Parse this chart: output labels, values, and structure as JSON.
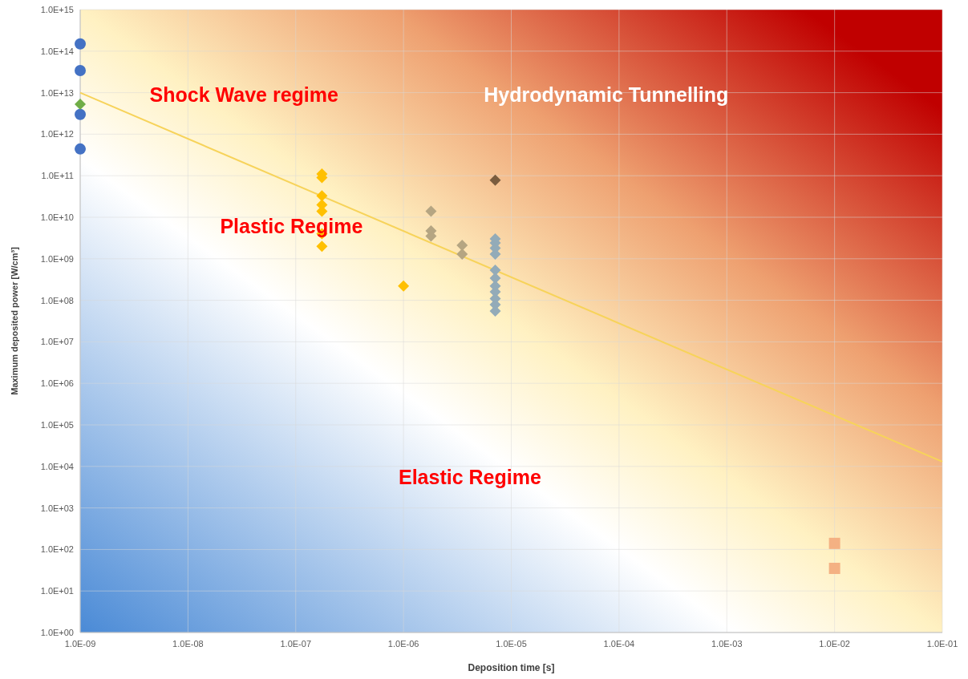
{
  "chart_data": {
    "type": "scatter",
    "xlabel": "Deposition time [s]",
    "ylabel": "Maximum deposited power [W/cm³]",
    "log": "xy",
    "grid": true,
    "xlim": [
      1e-09,
      0.1
    ],
    "ylim": [
      1,
      1000000000000000.0
    ],
    "xticks": [
      {
        "value": 1e-09,
        "label": "1.0E-09"
      },
      {
        "value": 1e-08,
        "label": "1.0E-08"
      },
      {
        "value": 1e-07,
        "label": "1.0E-07"
      },
      {
        "value": 1e-06,
        "label": "1.0E-06"
      },
      {
        "value": 1e-05,
        "label": "1.0E-05"
      },
      {
        "value": 0.0001,
        "label": "1.0E-04"
      },
      {
        "value": 0.001,
        "label": "1.0E-03"
      },
      {
        "value": 0.01,
        "label": "1.0E-02"
      },
      {
        "value": 0.1,
        "label": "1.0E-01"
      }
    ],
    "yticks": [
      {
        "value": 1,
        "label": "1.0E+00"
      },
      {
        "value": 10,
        "label": "1.0E+01"
      },
      {
        "value": 100,
        "label": "1.0E+02"
      },
      {
        "value": 1000.0,
        "label": "1.0E+03"
      },
      {
        "value": 10000.0,
        "label": "1.0E+04"
      },
      {
        "value": 100000.0,
        "label": "1.0E+05"
      },
      {
        "value": 1000000.0,
        "label": "1.0E+06"
      },
      {
        "value": 10000000.0,
        "label": "1.0E+07"
      },
      {
        "value": 100000000.0,
        "label": "1.0E+08"
      },
      {
        "value": 1000000000.0,
        "label": "1.0E+09"
      },
      {
        "value": 10000000000.0,
        "label": "1.0E+10"
      },
      {
        "value": 100000000000.0,
        "label": "1.0E+11"
      },
      {
        "value": 1000000000000.0,
        "label": "1.0E+12"
      },
      {
        "value": 10000000000000.0,
        "label": "1.0E+13"
      },
      {
        "value": 100000000000000.0,
        "label": "1.0E+14"
      },
      {
        "value": 1000000000000000.0,
        "label": "1.0E+15"
      }
    ],
    "series": [
      {
        "type": "line",
        "color": "#f7d35a",
        "x": [
          1e-09,
          0.1
        ],
        "values": [
          10000000000000.0,
          13000.0
        ]
      },
      {
        "color": "#4472c4",
        "marker": "circle",
        "x": [
          1e-09,
          1e-09,
          1e-09,
          1e-09
        ],
        "values": [
          150000000000000.0,
          34000000000000.0,
          3000000000000.0,
          440000000000.0
        ]
      },
      {
        "color": "#70ad47",
        "marker": "diamond",
        "x": [
          1e-09
        ],
        "values": [
          5300000000000.0
        ]
      },
      {
        "color": "#ffc000",
        "marker": "diamond",
        "x": [
          1.75e-07,
          1.75e-07,
          1.75e-07,
          1.75e-07,
          1.75e-07,
          1.75e-07,
          1.75e-07,
          1e-06
        ],
        "values": [
          110000000000.0,
          90000000000.0,
          33000000000.0,
          20000000000.0,
          14000000000.0,
          4000000000.0,
          2000000000.0,
          220000000.0
        ]
      },
      {
        "color": "#b5a582",
        "marker": "diamond",
        "x": [
          1.8e-06,
          1.8e-06,
          1.8e-06,
          3.5e-06,
          3.5e-06
        ],
        "values": [
          14000000000.0,
          4700000000.0,
          3500000000.0,
          2100000000.0,
          1300000000.0
        ]
      },
      {
        "color": "#7a5c3e",
        "marker": "diamond",
        "x": [
          7.1e-06
        ],
        "values": [
          78000000000.0
        ]
      },
      {
        "color": "#93abb8",
        "marker": "diamond",
        "x": [
          7.1e-06,
          7.1e-06,
          7.1e-06,
          7.1e-06,
          7.1e-06,
          7.1e-06,
          7.1e-06,
          7.1e-06,
          7.1e-06,
          7.1e-06,
          7.1e-06
        ],
        "values": [
          3000000000.0,
          2400000000.0,
          1800000000.0,
          1300000000.0,
          530000000.0,
          340000000.0,
          220000000.0,
          160000000.0,
          110000000.0,
          79000000.0,
          55000000.0
        ]
      },
      {
        "color": "#f4b183",
        "marker": "square",
        "x": [
          0.01,
          0.01
        ],
        "values": [
          140,
          35
        ]
      }
    ],
    "annotations": [
      "Shock Wave regime",
      "Hydrodynamic Tunnelling",
      "Plastic Regime",
      "Elastic Regime"
    ]
  }
}
